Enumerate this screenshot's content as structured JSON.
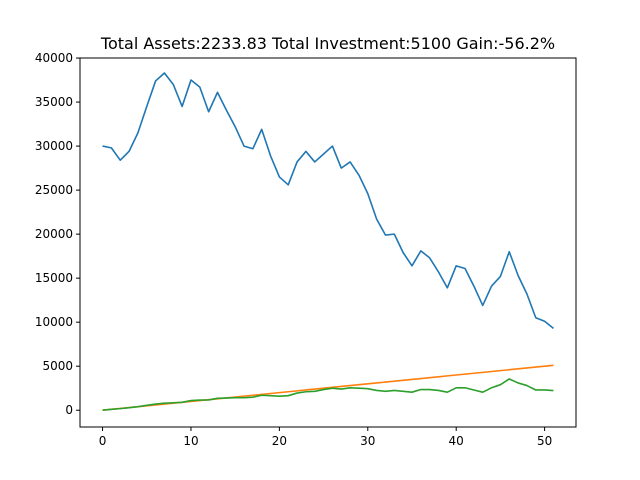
{
  "chart_data": {
    "type": "line",
    "title": "Total Assets:2233.83  Total Investment:5100  Gain:-56.2%",
    "xlabel": "",
    "ylabel": "",
    "xlim": [
      -2.55,
      53.55
    ],
    "ylim": [
      -1905,
      40005
    ],
    "xticks": [
      0,
      10,
      20,
      30,
      40,
      50
    ],
    "yticks": [
      0,
      5000,
      10000,
      15000,
      20000,
      25000,
      30000,
      35000,
      40000
    ],
    "grid": false,
    "legend": "none",
    "x": [
      0,
      1,
      2,
      3,
      4,
      5,
      6,
      7,
      8,
      9,
      10,
      11,
      12,
      13,
      14,
      15,
      16,
      17,
      18,
      19,
      20,
      21,
      22,
      23,
      24,
      25,
      26,
      27,
      28,
      29,
      30,
      31,
      32,
      33,
      34,
      35,
      36,
      37,
      38,
      39,
      40,
      41,
      42,
      43,
      44,
      45,
      46,
      47,
      48,
      49,
      50,
      51
    ],
    "series": [
      {
        "color": "#1f77b4",
        "values": [
          30000,
          29800,
          28400,
          29400,
          31500,
          34500,
          37400,
          38300,
          37000,
          34500,
          37500,
          36700,
          33900,
          36100,
          34100,
          32200,
          30000,
          29700,
          31900,
          28900,
          26500,
          25600,
          28200,
          29400,
          28200,
          29100,
          30000,
          27500,
          28200,
          26700,
          24600,
          21700,
          19900,
          20000,
          17900,
          16400,
          18100,
          17300,
          15700,
          13900,
          16400,
          16100,
          14100,
          11900,
          14100,
          15200,
          18000,
          15300,
          13200,
          10500,
          10100,
          9300
        ]
      },
      {
        "color": "#ff7f0e",
        "values": [
          0,
          100,
          200,
          300,
          400,
          500,
          600,
          700,
          800,
          900,
          1000,
          1100,
          1200,
          1300,
          1400,
          1500,
          1600,
          1700,
          1800,
          1900,
          2000,
          2100,
          2200,
          2300,
          2400,
          2500,
          2600,
          2700,
          2800,
          2900,
          3000,
          3100,
          3200,
          3300,
          3400,
          3500,
          3600,
          3700,
          3800,
          3900,
          4000,
          4100,
          4200,
          4300,
          4400,
          4500,
          4600,
          4700,
          4800,
          4900,
          5000,
          5100
        ]
      },
      {
        "color": "#2ca02c",
        "values": [
          0,
          100,
          180,
          290,
          400,
          560,
          700,
          800,
          850,
          900,
          1100,
          1150,
          1170,
          1350,
          1380,
          1420,
          1420,
          1480,
          1700,
          1650,
          1600,
          1650,
          1950,
          2100,
          2150,
          2350,
          2500,
          2400,
          2550,
          2500,
          2450,
          2250,
          2150,
          2250,
          2150,
          2050,
          2350,
          2350,
          2250,
          2050,
          2550,
          2550,
          2300,
          2050,
          2550,
          2900,
          3550,
          3100,
          2800,
          2300,
          2300,
          2233.83
        ]
      }
    ]
  }
}
